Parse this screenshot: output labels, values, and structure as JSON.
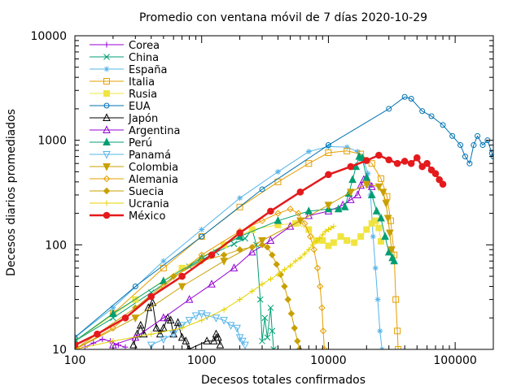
{
  "chart_data": {
    "type": "line",
    "title": "Promedio con ventana móvil de 7 días 2020-10-29",
    "xlabel": "Decesos totales confirmados",
    "ylabel": "Decesos diarios promediados",
    "x_scale": "log",
    "y_scale": "log",
    "xlim": [
      100,
      200000
    ],
    "ylim": [
      10,
      10000
    ],
    "x_ticks": [
      {
        "value": 100,
        "label": "100"
      },
      {
        "value": 1000,
        "label": "1000"
      },
      {
        "value": 10000,
        "label": "10000"
      },
      {
        "value": 100000,
        "label": "100000"
      }
    ],
    "y_ticks": [
      {
        "value": 10,
        "label": "10"
      },
      {
        "value": 100,
        "label": "100"
      },
      {
        "value": 1000,
        "label": "1000"
      },
      {
        "value": 10000,
        "label": "10000"
      }
    ],
    "grid": false,
    "legend_position": "top-left",
    "series": [
      {
        "name": "Corea",
        "color": "#9400d3",
        "marker": "plus",
        "points": [
          [
            100,
            10
          ],
          [
            120,
            10.5
          ],
          [
            140,
            11.5
          ],
          [
            165,
            12.5
          ],
          [
            190,
            12
          ],
          [
            220,
            11
          ],
          [
            250,
            10.5
          ]
        ]
      },
      {
        "name": "China",
        "color": "#009e73",
        "marker": "x",
        "points": [
          [
            100,
            12
          ],
          [
            200,
            20
          ],
          [
            400,
            35
          ],
          [
            800,
            62
          ],
          [
            1300,
            85
          ],
          [
            1800,
            102
          ],
          [
            2200,
            115
          ],
          [
            2500,
            140
          ],
          [
            2700,
            100
          ],
          [
            2900,
            30
          ],
          [
            3000,
            12
          ],
          [
            3150,
            20
          ],
          [
            3300,
            13
          ],
          [
            3500,
            25
          ],
          [
            3600,
            15
          ],
          [
            3700,
            10
          ]
        ]
      },
      {
        "name": "España",
        "color": "#56b4e9",
        "marker": "star",
        "points": [
          [
            100,
            13
          ],
          [
            200,
            25
          ],
          [
            500,
            70
          ],
          [
            1000,
            140
          ],
          [
            2000,
            280
          ],
          [
            4000,
            500
          ],
          [
            7000,
            780
          ],
          [
            10000,
            870
          ],
          [
            14000,
            860
          ],
          [
            17000,
            780
          ],
          [
            19000,
            640
          ],
          [
            20500,
            480
          ],
          [
            21500,
            300
          ],
          [
            22500,
            120
          ],
          [
            23500,
            60
          ],
          [
            24500,
            30
          ],
          [
            25500,
            15
          ],
          [
            26500,
            10
          ]
        ]
      },
      {
        "name": "Italia",
        "color": "#e69f00",
        "marker": "square-open",
        "points": [
          [
            100,
            12
          ],
          [
            200,
            22
          ],
          [
            500,
            60
          ],
          [
            1000,
            120
          ],
          [
            2000,
            230
          ],
          [
            4000,
            400
          ],
          [
            7000,
            600
          ],
          [
            10000,
            760
          ],
          [
            14000,
            790
          ],
          [
            18000,
            740
          ],
          [
            22000,
            600
          ],
          [
            26000,
            430
          ],
          [
            29000,
            290
          ],
          [
            31000,
            170
          ],
          [
            33000,
            80
          ],
          [
            34000,
            30
          ],
          [
            35000,
            15
          ],
          [
            35500,
            10
          ]
        ]
      },
      {
        "name": "Rusia",
        "color": "#f0e442",
        "marker": "square",
        "points": [
          [
            100,
            12
          ],
          [
            300,
            30
          ],
          [
            700,
            60
          ],
          [
            1500,
            100
          ],
          [
            2500,
            140
          ],
          [
            4000,
            155
          ],
          [
            5500,
            160
          ],
          [
            7000,
            140
          ],
          [
            8000,
            110
          ],
          [
            9000,
            110
          ],
          [
            10000,
            98
          ],
          [
            11000,
            105
          ],
          [
            12500,
            120
          ],
          [
            14000,
            110
          ],
          [
            16000,
            105
          ],
          [
            18000,
            120
          ],
          [
            20000,
            140
          ],
          [
            22000,
            160
          ],
          [
            23500,
            170
          ],
          [
            25000,
            145
          ],
          [
            26000,
            108
          ]
        ]
      },
      {
        "name": "EUA",
        "color": "#0072b2",
        "marker": "circle-open",
        "points": [
          [
            100,
            13
          ],
          [
            300,
            40
          ],
          [
            1000,
            120
          ],
          [
            3000,
            340
          ],
          [
            10000,
            900
          ],
          [
            30000,
            2000
          ],
          [
            40000,
            2600
          ],
          [
            45000,
            2500
          ],
          [
            55000,
            1900
          ],
          [
            65000,
            1700
          ],
          [
            80000,
            1400
          ],
          [
            95000,
            1100
          ],
          [
            110000,
            900
          ],
          [
            120000,
            700
          ],
          [
            130000,
            600
          ],
          [
            140000,
            900
          ],
          [
            150000,
            1100
          ],
          [
            165000,
            900
          ],
          [
            180000,
            1000
          ],
          [
            195000,
            750
          ],
          [
            200000,
            700
          ]
        ]
      },
      {
        "name": "Japón",
        "color": "#000000",
        "marker": "triangle-open",
        "points": [
          [
            290,
            11
          ],
          [
            310,
            14
          ],
          [
            330,
            17
          ],
          [
            350,
            14
          ],
          [
            380,
            25
          ],
          [
            410,
            28
          ],
          [
            440,
            16
          ],
          [
            470,
            14
          ],
          [
            500,
            16
          ],
          [
            540,
            20
          ],
          [
            570,
            19
          ],
          [
            600,
            14
          ],
          [
            650,
            18
          ],
          [
            700,
            13
          ],
          [
            750,
            12
          ],
          [
            790,
            10
          ],
          [
            1100,
            12
          ],
          [
            1250,
            12
          ],
          [
            1300,
            14
          ],
          [
            1350,
            13
          ],
          [
            1400,
            11
          ]
        ]
      },
      {
        "name": "Argentina",
        "color": "#9400d3",
        "marker": "triangle-up-open",
        "points": [
          [
            200,
            11
          ],
          [
            300,
            13
          ],
          [
            500,
            20
          ],
          [
            800,
            30
          ],
          [
            1200,
            42
          ],
          [
            1800,
            60
          ],
          [
            2500,
            85
          ],
          [
            3500,
            110
          ],
          [
            5000,
            150
          ],
          [
            7000,
            190
          ],
          [
            10000,
            210
          ],
          [
            13000,
            240
          ],
          [
            15000,
            270
          ],
          [
            17000,
            300
          ],
          [
            18000,
            370
          ],
          [
            19000,
            420
          ],
          [
            20000,
            440
          ],
          [
            21000,
            380
          ],
          [
            22000,
            360
          ]
        ]
      },
      {
        "name": "Perú",
        "color": "#009e73",
        "marker": "triangle-up",
        "points": [
          [
            100,
            12
          ],
          [
            200,
            22
          ],
          [
            500,
            45
          ],
          [
            1000,
            75
          ],
          [
            2000,
            120
          ],
          [
            4000,
            170
          ],
          [
            7000,
            210
          ],
          [
            10000,
            220
          ],
          [
            12000,
            220
          ],
          [
            13500,
            230
          ],
          [
            14500,
            310
          ],
          [
            15500,
            420
          ],
          [
            16500,
            560
          ],
          [
            17500,
            700
          ],
          [
            18500,
            680
          ],
          [
            20000,
            440
          ],
          [
            22000,
            300
          ],
          [
            24000,
            210
          ],
          [
            26000,
            180
          ],
          [
            28000,
            120
          ],
          [
            30000,
            85
          ],
          [
            32000,
            75
          ],
          [
            33000,
            70
          ]
        ]
      },
      {
        "name": "Panamá",
        "color": "#56b4e9",
        "marker": "triangle-down-open",
        "points": [
          [
            400,
            11
          ],
          [
            500,
            12.5
          ],
          [
            600,
            14
          ],
          [
            700,
            17
          ],
          [
            800,
            19
          ],
          [
            900,
            21
          ],
          [
            1000,
            22
          ],
          [
            1100,
            21
          ],
          [
            1300,
            20
          ],
          [
            1500,
            19
          ],
          [
            1700,
            17
          ],
          [
            1900,
            16
          ],
          [
            2000,
            13
          ],
          [
            2100,
            12
          ],
          [
            2200,
            11
          ]
        ]
      },
      {
        "name": "Colombia",
        "color": "#c8a000",
        "marker": "triangle-down",
        "points": [
          [
            100,
            10
          ],
          [
            300,
            20
          ],
          [
            700,
            40
          ],
          [
            1500,
            70
          ],
          [
            3000,
            110
          ],
          [
            6000,
            170
          ],
          [
            10000,
            240
          ],
          [
            15000,
            320
          ],
          [
            20000,
            380
          ],
          [
            25000,
            360
          ],
          [
            27000,
            320
          ],
          [
            28500,
            250
          ],
          [
            29500,
            180
          ],
          [
            30500,
            130
          ],
          [
            31500,
            90
          ]
        ]
      },
      {
        "name": "Alemania",
        "color": "#e69f00",
        "marker": "diamond-open",
        "points": [
          [
            100,
            10
          ],
          [
            200,
            16
          ],
          [
            500,
            40
          ],
          [
            1000,
            80
          ],
          [
            2000,
            135
          ],
          [
            3000,
            170
          ],
          [
            4000,
            200
          ],
          [
            5000,
            220
          ],
          [
            5800,
            200
          ],
          [
            6500,
            160
          ],
          [
            7200,
            120
          ],
          [
            7700,
            90
          ],
          [
            8200,
            60
          ],
          [
            8600,
            40
          ],
          [
            8900,
            25
          ],
          [
            9100,
            15
          ],
          [
            9300,
            10
          ]
        ]
      },
      {
        "name": "Suecia",
        "color": "#c8a000",
        "marker": "diamond",
        "points": [
          [
            100,
            10
          ],
          [
            300,
            25
          ],
          [
            600,
            50
          ],
          [
            1000,
            70
          ],
          [
            1500,
            80
          ],
          [
            2000,
            90
          ],
          [
            2500,
            95
          ],
          [
            3000,
            100
          ],
          [
            3300,
            95
          ],
          [
            3600,
            80
          ],
          [
            3900,
            65
          ],
          [
            4200,
            52
          ],
          [
            4500,
            40
          ],
          [
            4800,
            30
          ],
          [
            5100,
            22
          ],
          [
            5400,
            16
          ],
          [
            5700,
            12
          ],
          [
            5900,
            10
          ]
        ]
      },
      {
        "name": "Ucrania",
        "color": "#e6d200",
        "marker": "plus",
        "points": [
          [
            100,
            10
          ],
          [
            200,
            12
          ],
          [
            400,
            14
          ],
          [
            700,
            16
          ],
          [
            1000,
            19
          ],
          [
            1500,
            24
          ],
          [
            2000,
            30
          ],
          [
            2500,
            36
          ],
          [
            3000,
            42
          ],
          [
            3500,
            47
          ],
          [
            4000,
            52
          ],
          [
            4500,
            58
          ],
          [
            5000,
            63
          ],
          [
            5500,
            70
          ],
          [
            6000,
            75
          ],
          [
            6500,
            82
          ],
          [
            7000,
            90
          ],
          [
            7500,
            100
          ],
          [
            8000,
            108
          ],
          [
            8500,
            115
          ],
          [
            9000,
            125
          ],
          [
            9500,
            135
          ],
          [
            10000,
            140
          ],
          [
            10500,
            145
          ],
          [
            11000,
            150
          ]
        ]
      },
      {
        "name": "México",
        "color": "#e41a1c",
        "marker": "filled-circle",
        "points": [
          [
            100,
            11
          ],
          [
            150,
            14
          ],
          [
            250,
            20
          ],
          [
            400,
            32
          ],
          [
            700,
            50
          ],
          [
            1200,
            80
          ],
          [
            2000,
            130
          ],
          [
            3500,
            210
          ],
          [
            6000,
            320
          ],
          [
            10000,
            470
          ],
          [
            15000,
            560
          ],
          [
            20000,
            640
          ],
          [
            25000,
            720
          ],
          [
            30000,
            650
          ],
          [
            35000,
            600
          ],
          [
            40000,
            630
          ],
          [
            45000,
            600
          ],
          [
            50000,
            680
          ],
          [
            55000,
            560
          ],
          [
            60000,
            600
          ],
          [
            65000,
            520
          ],
          [
            70000,
            480
          ],
          [
            75000,
            420
          ],
          [
            80000,
            380
          ]
        ]
      }
    ]
  }
}
